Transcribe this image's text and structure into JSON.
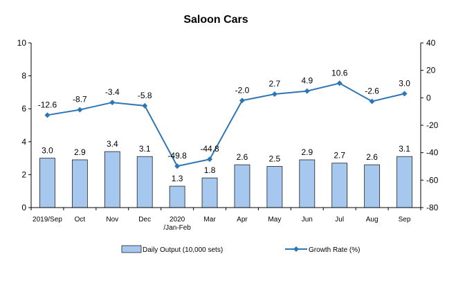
{
  "chart_data": {
    "type": "bar+line",
    "title": "Saloon Cars",
    "categories": [
      "2019/Sep",
      "Oct",
      "Nov",
      "Dec",
      "2020\n/Jan-Feb",
      "Mar",
      "Apr",
      "May",
      "Jun",
      "Jul",
      "Aug",
      "Sep"
    ],
    "series": [
      {
        "name": "Daily Output (10,000 sets)",
        "type": "bar",
        "axis": "left",
        "values": [
          3.0,
          2.9,
          3.4,
          3.1,
          1.3,
          1.8,
          2.6,
          2.5,
          2.9,
          2.7,
          2.6,
          3.1
        ],
        "labels": [
          "3.0",
          "2.9",
          "3.4",
          "3.1",
          "1.3",
          "1.8",
          "2.6",
          "2.5",
          "2.9",
          "2.7",
          "2.6",
          "3.1"
        ]
      },
      {
        "name": "Growth Rate (%)",
        "type": "line",
        "axis": "right",
        "values": [
          -12.6,
          -8.7,
          -3.4,
          -5.8,
          -49.8,
          -44.8,
          -2.0,
          2.7,
          4.9,
          10.6,
          -2.6,
          3.0
        ],
        "labels": [
          "-12.6",
          "-8.7",
          "-3.4",
          "-5.8",
          "-49.8",
          "-44.8",
          "-2.0",
          "2.7",
          "4.9",
          "10.6",
          "-2.6",
          "3.0"
        ]
      }
    ],
    "left_axis": {
      "min": 0,
      "max": 10,
      "ticks": [
        "0",
        "2",
        "4",
        "6",
        "8",
        "10"
      ]
    },
    "right_axis": {
      "min": -80,
      "max": 40,
      "ticks": [
        "-80",
        "-60",
        "-40",
        "-20",
        "0",
        "20",
        "40"
      ]
    },
    "grid": false,
    "legend_position": "bottom",
    "colors": {
      "bar_fill": "#a6c8ee",
      "bar_stroke": "#1f1f1f",
      "line": "#2e75b6"
    }
  }
}
